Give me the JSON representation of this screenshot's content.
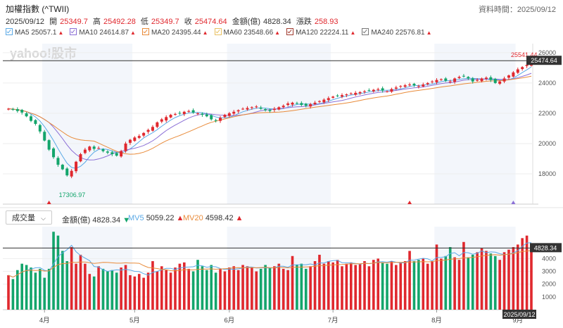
{
  "header": {
    "title": "加權指數 (^TWII)",
    "asof_label": "資料時間：2025/09/12",
    "date": "2025/09/12",
    "open_label": "開",
    "open": "25349.7",
    "high_label": "高",
    "high": "25492.28",
    "low_label": "低",
    "low": "25349.7",
    "close_label": "收",
    "close": "25474.64",
    "amount_label": "金額(億)",
    "amount": "4828.34",
    "change_label": "漲跌",
    "change": "258.93"
  },
  "ma_legend": [
    {
      "label": "MA5",
      "value": "25057.1",
      "color": "#5aa9e6",
      "arrow": "▲"
    },
    {
      "label": "MA10",
      "value": "24614.87",
      "color": "#8b6fd6",
      "arrow": "▲"
    },
    {
      "label": "MA20",
      "value": "24395.44",
      "color": "#e98b3a",
      "arrow": "▲"
    },
    {
      "label": "MA60",
      "value": "23548.66",
      "color": "#e8c060",
      "arrow": "▲"
    },
    {
      "label": "MA120",
      "value": "22224.11",
      "color": "#a13b2f",
      "arrow": "▲"
    },
    {
      "label": "MA240",
      "value": "22576.81",
      "color": "#777777",
      "arrow": "▲"
    }
  ],
  "watermark": "yahoo!股市",
  "volume_panel": {
    "selector": "成交量",
    "amount_label": "金額(億)",
    "amount": "4828.34",
    "amount_arrow": "▼",
    "mv5_label": "MV5",
    "mv5": "5059.22",
    "mv5_arrow": "▲",
    "mv20_label": "MV20",
    "mv20": "4598.42",
    "mv20_arrow": "▲",
    "date_tag": "2025/09/12"
  },
  "chart_data": [
    {
      "type": "candlestick",
      "title": "加權指數 (^TWII)",
      "y_ticks": [
        18000,
        20000,
        22000,
        24000,
        26000
      ],
      "ylim": [
        16000,
        26600
      ],
      "x_labels": [
        "4月",
        "5月",
        "6月",
        "7月",
        "8月",
        "9月"
      ],
      "annotations": [
        {
          "text": "17306.97",
          "value": 17306.97,
          "kind": "low"
        },
        {
          "text": "25541.44",
          "value": 25541.44,
          "kind": "high"
        },
        {
          "text": "25474.64",
          "value": 25474.64,
          "kind": "last-price"
        }
      ],
      "close_series": [
        22300,
        22250,
        22150,
        22050,
        21800,
        21500,
        21300,
        20800,
        20200,
        19600,
        19100,
        18600,
        18300,
        17900,
        18200,
        18800,
        19300,
        19600,
        19800,
        19650,
        19700,
        19500,
        19400,
        19300,
        19200,
        19500,
        20000,
        20250,
        20400,
        20500,
        20700,
        20900,
        21100,
        21400,
        21600,
        21750,
        21900,
        21950,
        22000,
        22100,
        22150,
        22050,
        22000,
        21900,
        21800,
        21600,
        21500,
        21700,
        21900,
        22000,
        22100,
        22200,
        22300,
        22350,
        22400,
        22450,
        22300,
        22200,
        22150,
        22300,
        22400,
        22500,
        22650,
        22700,
        22650,
        22550,
        22500,
        22600,
        22700,
        22800,
        22900,
        23000,
        23100,
        23150,
        23200,
        23250,
        23300,
        23350,
        23400,
        23450,
        23500,
        23550,
        23600,
        23500,
        23450,
        23600,
        23700,
        23800,
        23850,
        23900,
        23850,
        23800,
        23900,
        24000,
        24100,
        24200,
        24250,
        24150,
        24100,
        24300,
        24400,
        24450,
        24300,
        24100,
        24200,
        24300,
        24350,
        24200,
        24000,
        24100,
        24300,
        24500,
        24700,
        24900,
        25050,
        25200,
        25474.64
      ]
    },
    {
      "type": "bar",
      "title": "成交量",
      "y_ticks": [
        1000,
        2000,
        3000,
        4000
      ],
      "ylim": [
        0,
        6500
      ],
      "x_labels": [
        "4月",
        "5月",
        "6月",
        "7月",
        "8月",
        "9月"
      ],
      "last_value": 4828.34,
      "values": [
        2700,
        2400,
        3100,
        3600,
        3500,
        3300,
        2900,
        3200,
        2500,
        3200,
        6100,
        5800,
        4600,
        3800,
        4900,
        3600,
        4300,
        3600,
        2800,
        2600,
        3400,
        3200,
        3000,
        3100,
        2900,
        3300,
        3500,
        2700,
        2600,
        2800,
        2500,
        2900,
        3800,
        3000,
        3400,
        3100,
        2900,
        3300,
        3600,
        3700,
        3200,
        3000,
        3900,
        3400,
        3100,
        3500,
        2900,
        3200,
        3000,
        3300,
        3400,
        3100,
        3500,
        3400,
        3300,
        3000,
        3200,
        3500,
        3300,
        3400,
        3600,
        3200,
        3100,
        4200,
        3500,
        3600,
        3200,
        3400,
        3800,
        4300,
        3600,
        3800,
        3700,
        3900,
        3400,
        3600,
        3700,
        3500,
        3600,
        3800,
        3400,
        3900,
        4000,
        3700,
        3600,
        3800,
        3500,
        3700,
        3800,
        4600,
        3800,
        3900,
        4000,
        3600,
        3800,
        5100,
        4000,
        4200,
        4900,
        4100,
        3900,
        5300,
        4100,
        4300,
        4500,
        4800,
        4600,
        4400,
        4200,
        3900,
        4500,
        4700,
        4900,
        5100,
        5600,
        5800,
        4828.34
      ]
    }
  ]
}
